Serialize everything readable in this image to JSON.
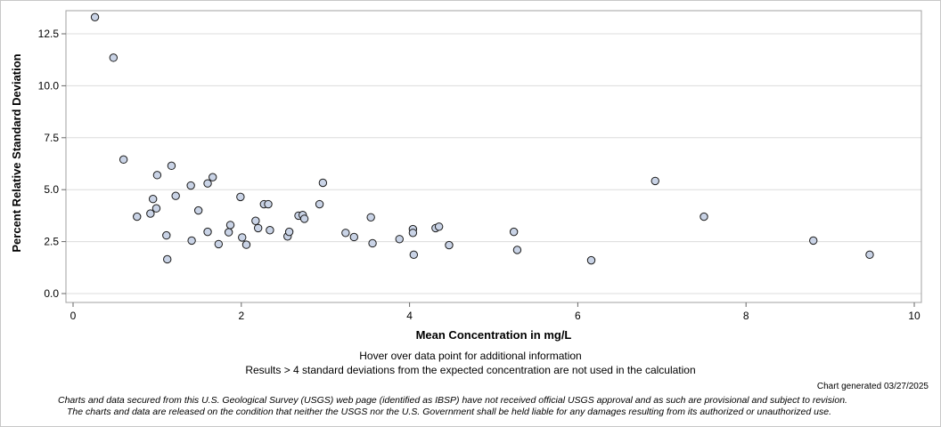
{
  "chart_data": {
    "type": "scatter",
    "xlabel": "Mean Concentration in mg/L",
    "ylabel": "Percent Relative Standard Deviation",
    "xlim": [
      0,
      10
    ],
    "ylim": [
      0,
      13.5
    ],
    "xticks": [
      0,
      2,
      4,
      6,
      8,
      10
    ],
    "xtick_labels": [
      "0",
      "2",
      "4",
      "6",
      "8",
      "10"
    ],
    "yticks": [
      0,
      2.5,
      5,
      7.5,
      10,
      12.5
    ],
    "ytick_labels": [
      "0.0",
      "2.5",
      "5.0",
      "7.5",
      "10.0",
      "12.5"
    ],
    "grid": "horizontal",
    "marker_fill": "#c9d3e6",
    "marker_edge": "#1a1a1a",
    "points": [
      {
        "x": 0.26,
        "y": 13.3
      },
      {
        "x": 0.48,
        "y": 11.35
      },
      {
        "x": 0.6,
        "y": 6.45
      },
      {
        "x": 0.76,
        "y": 3.7
      },
      {
        "x": 0.92,
        "y": 3.85
      },
      {
        "x": 0.95,
        "y": 4.55
      },
      {
        "x": 0.99,
        "y": 4.1
      },
      {
        "x": 1.0,
        "y": 5.7
      },
      {
        "x": 1.11,
        "y": 2.8
      },
      {
        "x": 1.12,
        "y": 1.65
      },
      {
        "x": 1.17,
        "y": 6.15
      },
      {
        "x": 1.22,
        "y": 4.7
      },
      {
        "x": 1.4,
        "y": 5.2
      },
      {
        "x": 1.41,
        "y": 2.55
      },
      {
        "x": 1.49,
        "y": 4.0
      },
      {
        "x": 1.6,
        "y": 5.3
      },
      {
        "x": 1.6,
        "y": 2.97
      },
      {
        "x": 1.66,
        "y": 5.6
      },
      {
        "x": 1.73,
        "y": 2.38
      },
      {
        "x": 1.85,
        "y": 2.95
      },
      {
        "x": 1.87,
        "y": 3.3
      },
      {
        "x": 1.99,
        "y": 4.65
      },
      {
        "x": 2.01,
        "y": 2.7
      },
      {
        "x": 2.06,
        "y": 2.35
      },
      {
        "x": 2.17,
        "y": 3.5
      },
      {
        "x": 2.2,
        "y": 3.15
      },
      {
        "x": 2.27,
        "y": 4.3
      },
      {
        "x": 2.32,
        "y": 4.3
      },
      {
        "x": 2.34,
        "y": 3.05
      },
      {
        "x": 2.55,
        "y": 2.75
      },
      {
        "x": 2.57,
        "y": 2.97
      },
      {
        "x": 2.68,
        "y": 3.75
      },
      {
        "x": 2.73,
        "y": 3.78
      },
      {
        "x": 2.75,
        "y": 3.6
      },
      {
        "x": 2.93,
        "y": 4.3
      },
      {
        "x": 2.97,
        "y": 5.33
      },
      {
        "x": 3.24,
        "y": 2.92
      },
      {
        "x": 3.34,
        "y": 2.72
      },
      {
        "x": 3.54,
        "y": 3.67
      },
      {
        "x": 3.56,
        "y": 2.42
      },
      {
        "x": 3.88,
        "y": 2.62
      },
      {
        "x": 4.04,
        "y": 3.1
      },
      {
        "x": 4.04,
        "y": 2.92
      },
      {
        "x": 4.05,
        "y": 1.87
      },
      {
        "x": 4.31,
        "y": 3.15
      },
      {
        "x": 4.35,
        "y": 3.22
      },
      {
        "x": 4.47,
        "y": 2.33
      },
      {
        "x": 5.24,
        "y": 2.97
      },
      {
        "x": 5.28,
        "y": 2.1
      },
      {
        "x": 6.16,
        "y": 1.6
      },
      {
        "x": 6.92,
        "y": 5.42
      },
      {
        "x": 7.5,
        "y": 3.7
      },
      {
        "x": 8.8,
        "y": 2.55
      },
      {
        "x": 9.47,
        "y": 1.87
      }
    ]
  },
  "notes": {
    "hover": "Hover over data point for additional information",
    "results": "Results > 4 standard deviations from the expected concentration are not used in the calculation",
    "generated": "Chart generated 03/27/2025",
    "disclaimer_line1": "Charts and data secured from this U.S. Geological Survey (USGS) web page (identified as IBSP) have not received official USGS approval and as such are provisional and subject to revision.",
    "disclaimer_line2": "The charts and data are released on the condition that neither the USGS nor the U.S. Government shall be held liable for any damages resulting from its authorized or unauthorized use."
  }
}
